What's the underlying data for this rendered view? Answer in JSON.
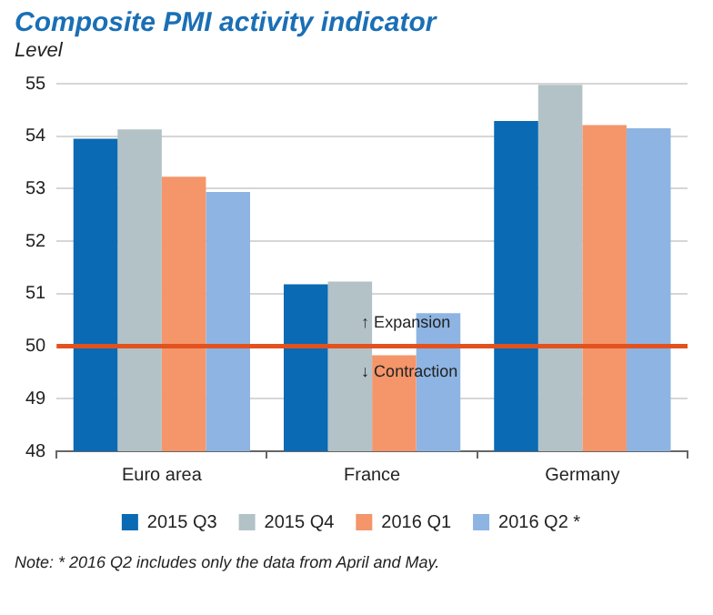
{
  "chart_data": {
    "type": "bar",
    "title": "Composite PMI activity indicator",
    "ylabel": "Level",
    "categories": [
      "Euro area",
      "France",
      "Germany"
    ],
    "series": [
      {
        "name": "2015 Q3",
        "color": "#0a6ab4",
        "values": [
          53.95,
          51.18,
          54.29
        ]
      },
      {
        "name": "2015 Q4",
        "color": "#b3c2c6",
        "values": [
          54.13,
          51.23,
          54.98
        ]
      },
      {
        "name": "2016 Q1",
        "color": "#f4956a",
        "values": [
          53.23,
          49.83,
          54.21
        ]
      },
      {
        "name": "2016 Q2 *",
        "color": "#8db4e2",
        "values": [
          52.94,
          50.63,
          54.15
        ]
      }
    ],
    "ylim": [
      48,
      55
    ],
    "yticks": [
      48,
      49,
      50,
      51,
      52,
      53,
      54,
      55
    ],
    "grid": "y",
    "legend": "bottom",
    "ref_lines": [
      {
        "axis": "y",
        "value": 50,
        "color": "#e2521f"
      }
    ],
    "annotations": [
      {
        "text": "↑ Expansion",
        "x": "France",
        "y": 50.45
      },
      {
        "text": "↓ Contraction",
        "x": "France",
        "y": 49.5
      },
      "Note: * 2016 Q2 includes only the data from April and May."
    ]
  }
}
